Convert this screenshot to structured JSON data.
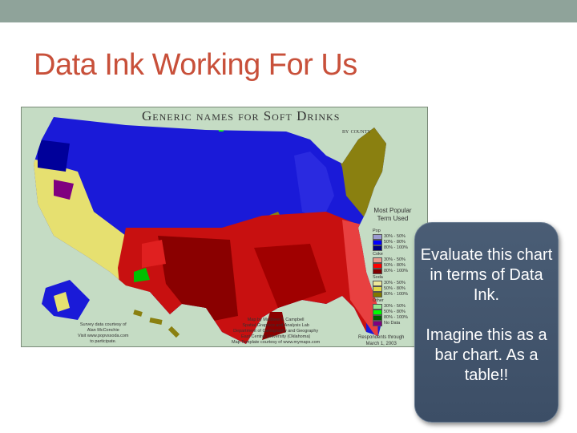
{
  "slide": {
    "title": "Data Ink Working For Us",
    "accent_color": "#c8503a",
    "topbar_color": "#8fa39a"
  },
  "map": {
    "title": "Generic names for Soft Drinks",
    "subtitle": "by county",
    "legend_title": "Most Popular Term Used",
    "legend": [
      {
        "group": "Pop",
        "items": [
          {
            "label": "30% - 50%",
            "color": "#9b9bd2"
          },
          {
            "label": "50% - 80%",
            "color": "#0000ff"
          },
          {
            "label": "80% - 100%",
            "color": "#00007f"
          }
        ]
      },
      {
        "group": "Coke",
        "items": [
          {
            "label": "30% - 50%",
            "color": "#e89a8c"
          },
          {
            "label": "50% - 80%",
            "color": "#ff0000"
          },
          {
            "label": "80% - 100%",
            "color": "#800000"
          }
        ]
      },
      {
        "group": "Soda",
        "items": [
          {
            "label": "30% - 50%",
            "color": "#ece89a"
          },
          {
            "label": "50% - 80%",
            "color": "#e0d848"
          },
          {
            "label": "80% - 100%",
            "color": "#807800"
          }
        ]
      },
      {
        "group": "Other",
        "items": [
          {
            "label": "30% - 50%",
            "color": "#90e890"
          },
          {
            "label": "50% - 80%",
            "color": "#00ff00"
          },
          {
            "label": "80% - 100%",
            "color": "#006000"
          },
          {
            "label": "No Data",
            "color": "#800080"
          }
        ]
      }
    ],
    "credit_left": [
      "Survey data courtesy of",
      "Alan McConchie",
      "Visit www.popvssoda.com",
      "to participate."
    ],
    "credit_center": [
      "Map by Matthew T. Campbell",
      "Spatial Graphics and Analysis Lab",
      "Department of Cartography and Geography",
      "East Central University (Oklahoma)",
      "Map Template courtesy of www.mymaps.com"
    ],
    "respondents": [
      "Respondents through",
      "March 1, 2003"
    ]
  },
  "callout": {
    "line1": "Evaluate this chart in terms of Data Ink.",
    "line2": "Imagine this as a bar chart. As a table!!"
  }
}
